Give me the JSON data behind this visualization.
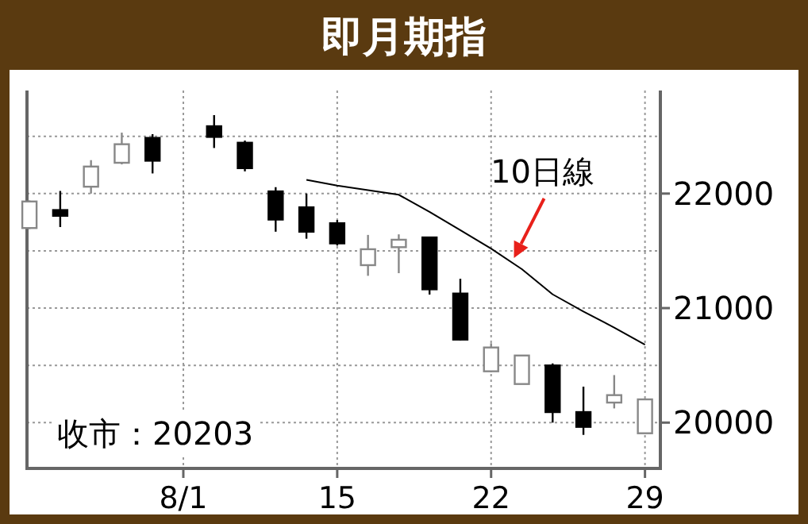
{
  "chart_data": {
    "type": "candlestick",
    "title": "即月期指",
    "annotations": [
      "收市：20203"
    ],
    "categories": [
      null,
      null,
      null,
      null,
      null,
      "8/1",
      null,
      null,
      null,
      null,
      "15",
      null,
      null,
      null,
      null,
      "22",
      null,
      null,
      null,
      null,
      "29"
    ],
    "ohlc": [
      [
        21699,
        21940,
        21690,
        21931
      ],
      [
        21856,
        22023,
        21708,
        21806
      ],
      [
        22060,
        22292,
        22000,
        22236
      ],
      [
        22269,
        22532,
        22255,
        22431
      ],
      [
        22486,
        22519,
        22176,
        22287
      ],
      null,
      [
        22588,
        22685,
        22398,
        22495
      ],
      [
        22444,
        22463,
        22194,
        22222
      ],
      [
        22019,
        22056,
        21667,
        21773
      ],
      [
        21880,
        22000,
        21606,
        21667
      ],
      [
        21741,
        21769,
        21546,
        21565
      ],
      [
        21375,
        21639,
        21282,
        21514
      ],
      [
        21532,
        21644,
        21305,
        21597
      ],
      [
        21617,
        21617,
        21118,
        21164
      ],
      [
        21127,
        21256,
        20716,
        20725
      ],
      [
        20448,
        20693,
        20440,
        20656
      ],
      [
        20337,
        20586,
        20337,
        20586
      ],
      [
        20499,
        20517,
        20000,
        20092
      ],
      [
        20092,
        20314,
        19893,
        19963
      ],
      [
        20175,
        20415,
        20124,
        20240
      ],
      [
        19907,
        20203,
        19907,
        20203
      ]
    ],
    "series": [
      {
        "name": "10日線",
        "type": "line",
        "color": "#000000",
        "values": [
          null,
          null,
          null,
          null,
          null,
          null,
          null,
          null,
          null,
          22120,
          22070,
          22030,
          21990,
          21840,
          21680,
          21520,
          21340,
          21120,
          20970,
          20830,
          20680
        ]
      }
    ],
    "ylim": [
      19600,
      22900
    ],
    "yticks": [
      20000,
      {
        "value": 20500,
        "label": null
      },
      21000,
      {
        "value": 21500,
        "label": null
      },
      22000,
      {
        "value": 22500,
        "label": null
      }
    ],
    "grid": true
  }
}
